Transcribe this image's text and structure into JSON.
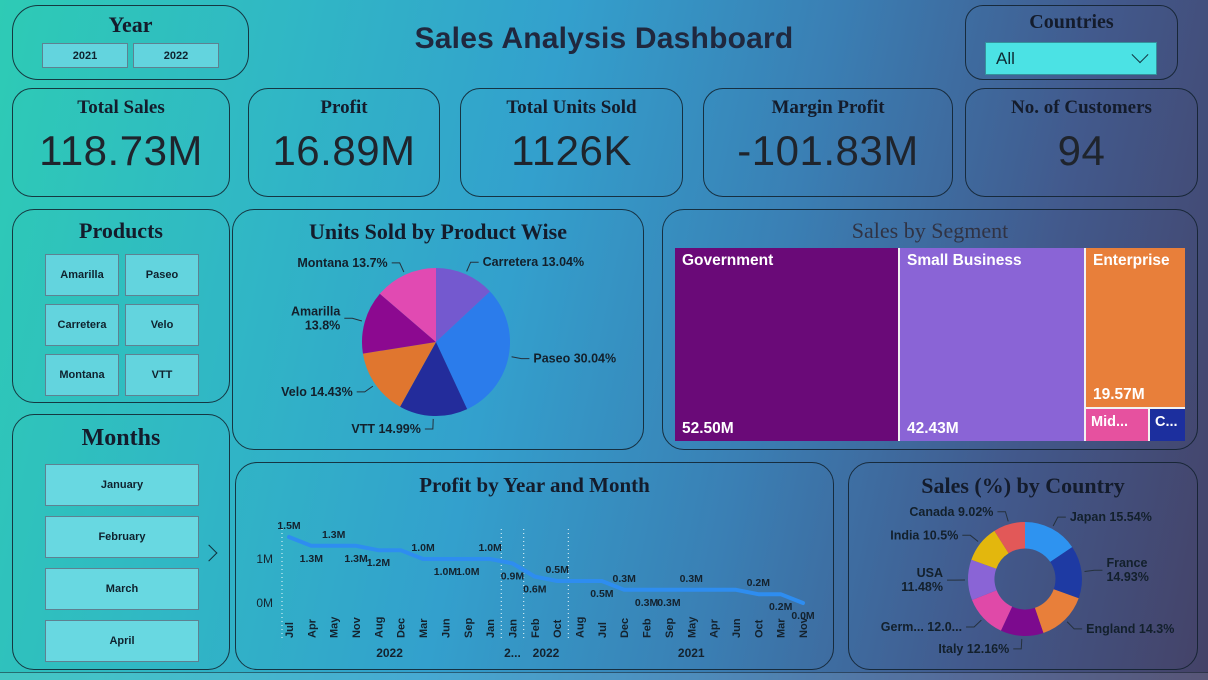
{
  "header": {
    "title": "Sales Analysis Dashboard"
  },
  "year_filter": {
    "title": "Year",
    "options": [
      "2021",
      "2022"
    ]
  },
  "countries_filter": {
    "title": "Countries",
    "selected": "All"
  },
  "kpis": [
    {
      "label": "Total Sales",
      "value": "118.73M"
    },
    {
      "label": "Profit",
      "value": "16.89M"
    },
    {
      "label": "Total Units Sold",
      "value": "1126K"
    },
    {
      "label": "Margin Profit",
      "value": "-101.83M"
    },
    {
      "label": "No. of Customers",
      "value": "94"
    }
  ],
  "products_filter": {
    "title": "Products",
    "options": [
      "Amarilla",
      "Paseo",
      "Carretera",
      "Velo",
      "Montana",
      "VTT"
    ]
  },
  "months_filter": {
    "title": "Months",
    "options": [
      "January",
      "February",
      "March",
      "April"
    ]
  },
  "chart_data": [
    {
      "id": "units-pie",
      "type": "pie",
      "title": "Units Sold by Product Wise",
      "slices": [
        {
          "name": "Carretera",
          "pct": 13.04,
          "color": "#7459cf",
          "label_lines": [
            "Carretera 13.04%"
          ]
        },
        {
          "name": "Paseo",
          "pct": 30.04,
          "color": "#2b7ceb",
          "label_lines": [
            "Paseo 30.04%"
          ]
        },
        {
          "name": "VTT",
          "pct": 14.99,
          "color": "#232c9b",
          "label_lines": [
            "VTT 14.99%"
          ]
        },
        {
          "name": "Velo",
          "pct": 14.43,
          "color": "#e0762f",
          "label_lines": [
            "Velo 14.43%"
          ]
        },
        {
          "name": "Amarilla",
          "pct": 13.8,
          "color": "#8c0990",
          "label_lines": [
            "Amarilla",
            "13.8%"
          ]
        },
        {
          "name": "Montana",
          "pct": 13.7,
          "color": "#e14ab2",
          "label_lines": [
            "Montana 13.7%"
          ]
        }
      ]
    },
    {
      "id": "segment-treemap",
      "type": "treemap",
      "title": "Sales by Segment",
      "blocks": [
        {
          "name": "Government",
          "value": "52.50M",
          "color": "#6a0a78"
        },
        {
          "name": "Small Business",
          "value": "42.43M",
          "color": "#8a64d6"
        },
        {
          "name": "Enterprise",
          "value": "19.57M",
          "color": "#e87f3a"
        },
        {
          "name": "Mid...",
          "value": "",
          "color": "#e6519f"
        },
        {
          "name": "C...",
          "value": "",
          "color": "#1c2f9e"
        }
      ]
    },
    {
      "id": "profit-line",
      "type": "line",
      "title": "Profit by Year and Month",
      "line_color": "#2e8df0",
      "ylim": [
        0,
        1.6
      ],
      "yticks": [
        {
          "v": 0,
          "label": "0M"
        },
        {
          "v": 1,
          "label": "1M"
        }
      ],
      "points": [
        {
          "month": "Jul",
          "v": 1.5,
          "label": "1.5M",
          "lp": "a"
        },
        {
          "month": "Apr",
          "v": 1.3,
          "label": "1.3M",
          "lp": "b"
        },
        {
          "month": "May",
          "v": 1.3,
          "label": "1.3M",
          "lp": "a"
        },
        {
          "month": "Nov",
          "v": 1.3,
          "label": "1.3M",
          "lp": "b"
        },
        {
          "month": "Aug",
          "v": 1.2,
          "label": "1.2M",
          "lp": "b"
        },
        {
          "month": "Dec",
          "v": 1.2,
          "label": "",
          "lp": ""
        },
        {
          "month": "Mar",
          "v": 1.0,
          "label": "1.0M",
          "lp": "a"
        },
        {
          "month": "Jun",
          "v": 1.0,
          "label": "1.0M",
          "lp": "b"
        },
        {
          "month": "Sep",
          "v": 1.0,
          "label": "1.0M",
          "lp": "b"
        },
        {
          "month": "Jan",
          "v": 1.0,
          "label": "1.0M",
          "lp": "a"
        },
        {
          "month": "Jan",
          "v": 0.9,
          "label": "0.9M",
          "lp": "b"
        },
        {
          "month": "Feb",
          "v": 0.6,
          "label": "0.6M",
          "lp": "b"
        },
        {
          "month": "Oct",
          "v": 0.5,
          "label": "0.5M",
          "lp": "a"
        },
        {
          "month": "Aug",
          "v": 0.5,
          "label": "",
          "lp": ""
        },
        {
          "month": "Jul",
          "v": 0.5,
          "label": "0.5M",
          "lp": "b"
        },
        {
          "month": "Dec",
          "v": 0.3,
          "label": "0.3M",
          "lp": "a"
        },
        {
          "month": "Feb",
          "v": 0.3,
          "label": "0.3M",
          "lp": "b"
        },
        {
          "month": "Sep",
          "v": 0.3,
          "label": "0.3M",
          "lp": "b"
        },
        {
          "month": "May",
          "v": 0.3,
          "label": "0.3M",
          "lp": "a"
        },
        {
          "month": "Apr",
          "v": 0.3,
          "label": "",
          "lp": ""
        },
        {
          "month": "Jun",
          "v": 0.3,
          "label": "",
          "lp": ""
        },
        {
          "month": "Oct",
          "v": 0.2,
          "label": "0.2M",
          "lp": "a"
        },
        {
          "month": "Mar",
          "v": 0.2,
          "label": "0.2M",
          "lp": "b"
        },
        {
          "month": "Nov",
          "v": 0.0,
          "label": "0.0M",
          "lp": "b"
        }
      ],
      "year_groups": [
        {
          "label": "2022",
          "from": 0,
          "to": 9
        },
        {
          "label": "2...",
          "from": 10,
          "to": 10
        },
        {
          "label": "2022",
          "from": 11,
          "to": 12
        },
        {
          "label": "2021",
          "from": 13,
          "to": 23
        }
      ]
    },
    {
      "id": "country-donut",
      "type": "donut",
      "title": "Sales (%) by Country",
      "slices": [
        {
          "name": "Japan",
          "pct": 15.54,
          "color": "#2e93f0",
          "label_lines": [
            "Japan 15.54%"
          ]
        },
        {
          "name": "France",
          "pct": 14.93,
          "color": "#1e3aa3",
          "label_lines": [
            "France",
            "14.93%"
          ]
        },
        {
          "name": "England",
          "pct": 14.3,
          "color": "#e87f3a",
          "label_lines": [
            "England 14.3%"
          ]
        },
        {
          "name": "Italy",
          "pct": 12.16,
          "color": "#7c0a8e",
          "label_lines": [
            "Italy 12.16%"
          ]
        },
        {
          "name": "Germany",
          "pct": 12.07,
          "color": "#e049a8",
          "label_lines": [
            "Germ... 12.0..."
          ]
        },
        {
          "name": "USA",
          "pct": 11.48,
          "color": "#8a64d6",
          "label_lines": [
            "USA",
            "11.48%"
          ]
        },
        {
          "name": "India",
          "pct": 10.5,
          "color": "#e3b70d",
          "label_lines": [
            "India 10.5%"
          ]
        },
        {
          "name": "Canada",
          "pct": 9.02,
          "color": "#e25858",
          "label_lines": [
            "Canada 9.02%"
          ]
        }
      ]
    }
  ]
}
